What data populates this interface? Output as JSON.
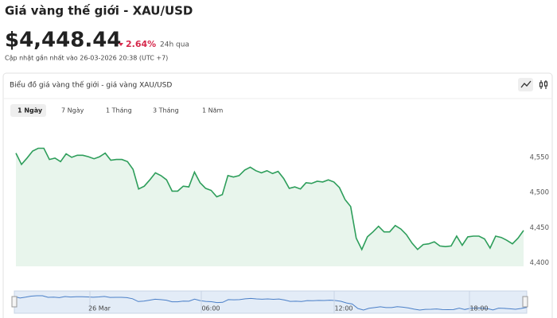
{
  "header": {
    "title": "Giá vàng thế giới - XAU/USD",
    "price": "$4,448.44",
    "change": "2.64%",
    "period": "24h qua",
    "updated": "Cập nhật gần nhất vào 26-03-2026 20:38 (UTC +7)"
  },
  "panel": {
    "title": "Biểu đồ giá vàng thế giới - giá vàng XAU/USD",
    "tabs": [
      "1 Ngày",
      "7 Ngày",
      "1 Tháng",
      "3 Tháng",
      "1 Năm"
    ]
  },
  "chart_data": {
    "type": "area",
    "color": "#2e9e5b",
    "fill": "#e8f5ec",
    "grid": false,
    "values": [
      4556,
      4540,
      4549,
      4559,
      4563,
      4563,
      4547,
      4549,
      4544,
      4555,
      4550,
      4553,
      4553,
      4551,
      4548,
      4551,
      4556,
      4546,
      4547,
      4547,
      4544,
      4533,
      4505,
      4509,
      4518,
      4528,
      4524,
      4518,
      4502,
      4502,
      4509,
      4508,
      4529,
      4514,
      4506,
      4503,
      4494,
      4497,
      4524,
      4522,
      4524,
      4532,
      4536,
      4531,
      4528,
      4531,
      4527,
      4530,
      4520,
      4506,
      4508,
      4505,
      4514,
      4513,
      4516,
      4515,
      4518,
      4515,
      4507,
      4490,
      4480,
      4435,
      4419,
      4437,
      4444,
      4452,
      4444,
      4444,
      4453,
      4448,
      4440,
      4428,
      4419,
      4426,
      4427,
      4430,
      4424,
      4423,
      4424,
      4438,
      4425,
      4437,
      4438,
      4438,
      4434,
      4421,
      4438,
      4436,
      4432,
      4427,
      4435,
      4446
    ],
    "ylim": [
      4395,
      4585
    ],
    "yticks": [
      {
        "value": 4400,
        "label": "4,400"
      },
      {
        "value": 4450,
        "label": "4,450"
      },
      {
        "value": 4500,
        "label": "4,500"
      },
      {
        "value": 4550,
        "label": "4,550"
      }
    ],
    "navigator_labels": [
      "26 Mar",
      "06:00",
      "12:00",
      "18:00"
    ]
  }
}
